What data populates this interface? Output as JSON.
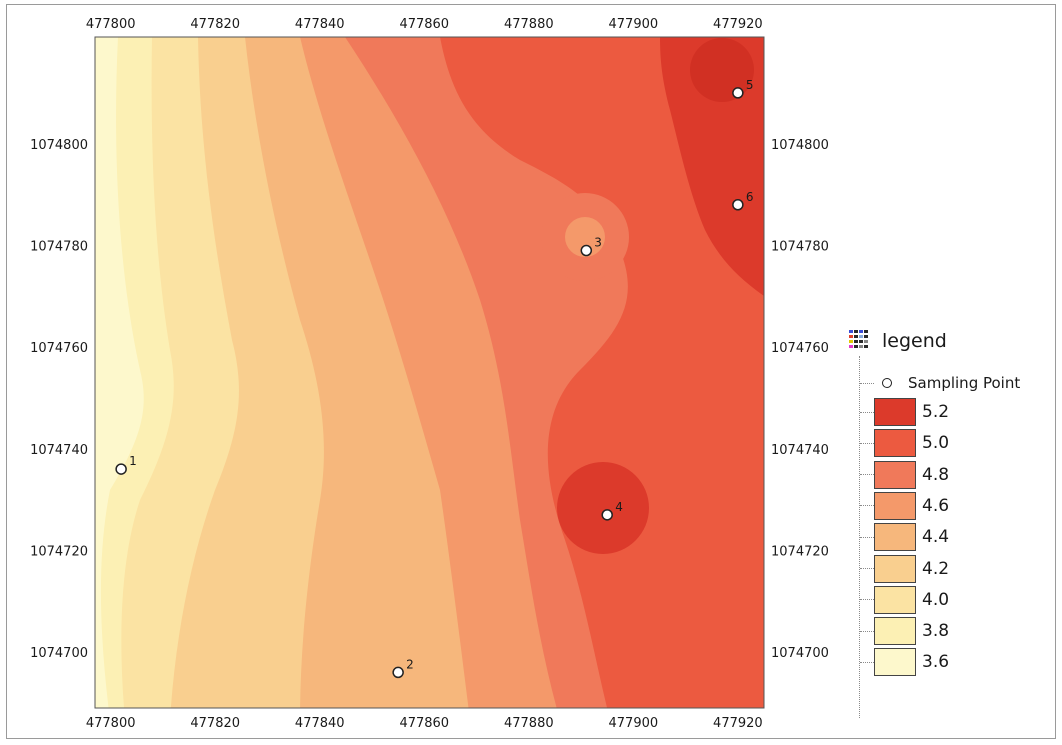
{
  "map": {
    "x_ticks": [
      "477800",
      "477820",
      "477840",
      "477860",
      "477880",
      "477900",
      "477920"
    ],
    "y_ticks": [
      "1074800",
      "1074780",
      "1074760",
      "1074740",
      "1074720",
      "1074700"
    ],
    "x_tick_values": [
      477800,
      477820,
      477840,
      477860,
      477880,
      477900,
      477920
    ],
    "y_tick_values": [
      1074800,
      1074780,
      1074760,
      1074740,
      1074720,
      1074700
    ],
    "x_range": [
      477797,
      477925
    ],
    "y_range": [
      1074689,
      1074821
    ]
  },
  "sampling_points": [
    {
      "label": "1",
      "x": 477802,
      "y": 1074736,
      "value": 3.6
    },
    {
      "label": "2",
      "x": 477855,
      "y": 1074696,
      "value": 4.4
    },
    {
      "label": "3",
      "x": 477891,
      "y": 1074779,
      "value": 4.7
    },
    {
      "label": "4",
      "x": 477895,
      "y": 1074727,
      "value": 5.2
    },
    {
      "label": "5",
      "x": 477920,
      "y": 1074810,
      "value": 5.3
    },
    {
      "label": "6",
      "x": 477920,
      "y": 1074788,
      "value": 5.2
    }
  ],
  "legend": {
    "title": "legend",
    "sampling_point_label": "Sampling Point",
    "classes": [
      {
        "label": "5.2",
        "color": "#dc3a2b"
      },
      {
        "label": "5.0",
        "color": "#ec5a40"
      },
      {
        "label": "4.8",
        "color": "#f0795a"
      },
      {
        "label": "4.6",
        "color": "#f4996a"
      },
      {
        "label": "4.4",
        "color": "#f6b77c"
      },
      {
        "label": "4.2",
        "color": "#f9cf8f"
      },
      {
        "label": "4.0",
        "color": "#fbe3a3"
      },
      {
        "label": "3.8",
        "color": "#fcf0b4"
      },
      {
        "label": "3.6",
        "color": "#fdf8cc"
      }
    ]
  }
}
